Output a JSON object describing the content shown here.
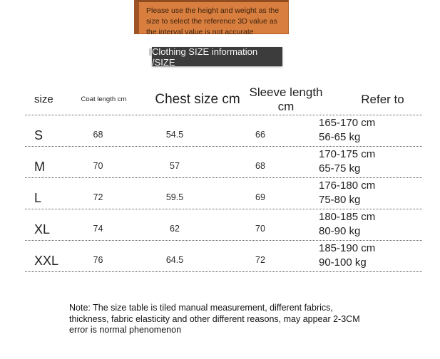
{
  "notice_banner": {
    "text": "Please use the height and weight as the size to select the reference 3D value as the interval value is not accurate",
    "bg_color": "#d87e3f",
    "border_color": "#9f5426",
    "text_color": "#3d220c"
  },
  "title_bar": {
    "text": "Clothing SIZE information /SIZE",
    "bg_color": "#3c3c3c",
    "text_color": "#f5f5f5"
  },
  "table": {
    "headers": [
      "size",
      "Coat length cm",
      "Chest size cm",
      "Sleeve length cm",
      "Refer to"
    ],
    "rows": [
      {
        "size": "S",
        "coat": "68",
        "chest": "54.5",
        "sleeve": "66",
        "refer_cm": "165-170 cm",
        "refer_kg": "56-65 kg"
      },
      {
        "size": "M",
        "coat": "70",
        "chest": "57",
        "sleeve": "68",
        "refer_cm": "170-175 cm",
        "refer_kg": "65-75 kg"
      },
      {
        "size": "L",
        "coat": "72",
        "chest": "59.5",
        "sleeve": "69",
        "refer_cm": "176-180 cm",
        "refer_kg": "75-80 kg"
      },
      {
        "size": "XL",
        "coat": "74",
        "chest": "62",
        "sleeve": "70",
        "refer_cm": "180-185 cm",
        "refer_kg": "80-90 kg"
      },
      {
        "size": "XXL",
        "coat": "76",
        "chest": "64.5",
        "sleeve": "72",
        "refer_cm": "185-190 cm",
        "refer_kg": "90-100 kg"
      }
    ]
  },
  "note": {
    "text": "Note: The size table is tiled manual measurement, different fabrics, thickness, fabric elasticity and other different reasons, may appear 2-3CM error is normal phenomenon"
  }
}
